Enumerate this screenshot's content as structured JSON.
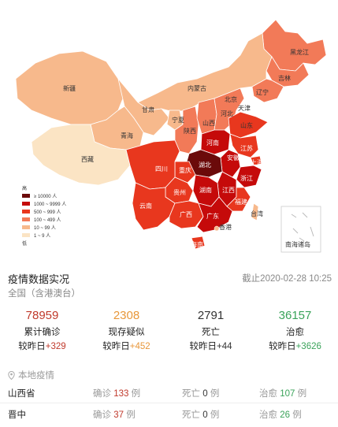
{
  "colors": {
    "level_10000": "#6b0a0a",
    "level_1000": "#c50a0a",
    "level_500": "#e8371e",
    "level_100": "#f27a58",
    "level_10": "#f7b98c",
    "level_1": "#fbe4c4",
    "red_value": "#c0392b",
    "orange_value": "#e8973a",
    "dark_value": "#333333",
    "green_value": "#3aa35a"
  },
  "map": {
    "labels": {
      "heilongjiang": "黑龙江",
      "jilin": "吉林",
      "liaoning": "辽宁",
      "neimenggu": "内蒙古",
      "beijing": "北京",
      "tianjin": "天津",
      "hebei": "河北",
      "shanxi": "山西",
      "shandong": "山东",
      "xinjiang": "新疆",
      "gansu": "甘肃",
      "ningxia": "宁夏",
      "qinghai": "青海",
      "shaanxi": "陕西",
      "henan": "河南",
      "jiangsu": "江苏",
      "anhui": "安徽",
      "shanghai": "上海",
      "xizang": "西藏",
      "sichuan": "四川",
      "chongqing": "重庆",
      "hubei": "湖北",
      "zhejiang": "浙江",
      "guizhou": "贵州",
      "hunan": "湖南",
      "jiangxi": "江西",
      "yunnan": "云南",
      "guangxi": "广西",
      "guangdong": "广东",
      "fujian": "福建",
      "taiwan": "台湾",
      "xianggang": "香港",
      "hainan": "海南",
      "nanhai": "南海诸岛"
    },
    "legend": [
      {
        "label": "≥ 10000 人",
        "color": "#6b0a0a"
      },
      {
        "label": "1000 ~ 9999 人",
        "color": "#c50a0a"
      },
      {
        "label": "500 ~ 999 人",
        "color": "#e8371e"
      },
      {
        "label": "100 ~ 499 人",
        "color": "#f27a58"
      },
      {
        "label": "10 ~ 99 人",
        "color": "#f7b98c"
      },
      {
        "label": "1 ~ 9 人",
        "color": "#fbe4c4"
      }
    ],
    "legend_title": "高",
    "legend_footer": "低"
  },
  "panel": {
    "title": "疫情数据实况",
    "timestamp": "截止2020-02-28 10:25",
    "region": "全国（含港澳台）"
  },
  "stats": [
    {
      "value": "78959",
      "label": "累计确诊",
      "delta_prefix": "较昨日",
      "delta": "+329",
      "color": "#c0392b"
    },
    {
      "value": "2308",
      "label": "现存疑似",
      "delta_prefix": "较昨日",
      "delta": "+452",
      "color": "#e8973a"
    },
    {
      "value": "2791",
      "label": "死亡",
      "delta_prefix": "较昨日",
      "delta": "+44",
      "color": "#333333"
    },
    {
      "value": "36157",
      "label": "治愈",
      "delta_prefix": "较昨日",
      "delta": "+3626",
      "color": "#3aa35a"
    }
  ],
  "local": {
    "header": "本地疫情",
    "rows": [
      {
        "name": "山西省",
        "confirmed_label": "确诊",
        "confirmed": "133",
        "confirmed_unit": "例",
        "dead_label": "死亡",
        "dead": "0",
        "dead_unit": "例",
        "cured_label": "治愈",
        "cured": "107",
        "cured_unit": "例"
      },
      {
        "name": "晋中",
        "confirmed_label": "确诊",
        "confirmed": "37",
        "confirmed_unit": "例",
        "dead_label": "死亡",
        "dead": "0",
        "dead_unit": "例",
        "cured_label": "治愈",
        "cured": "26",
        "cured_unit": "例"
      }
    ]
  }
}
